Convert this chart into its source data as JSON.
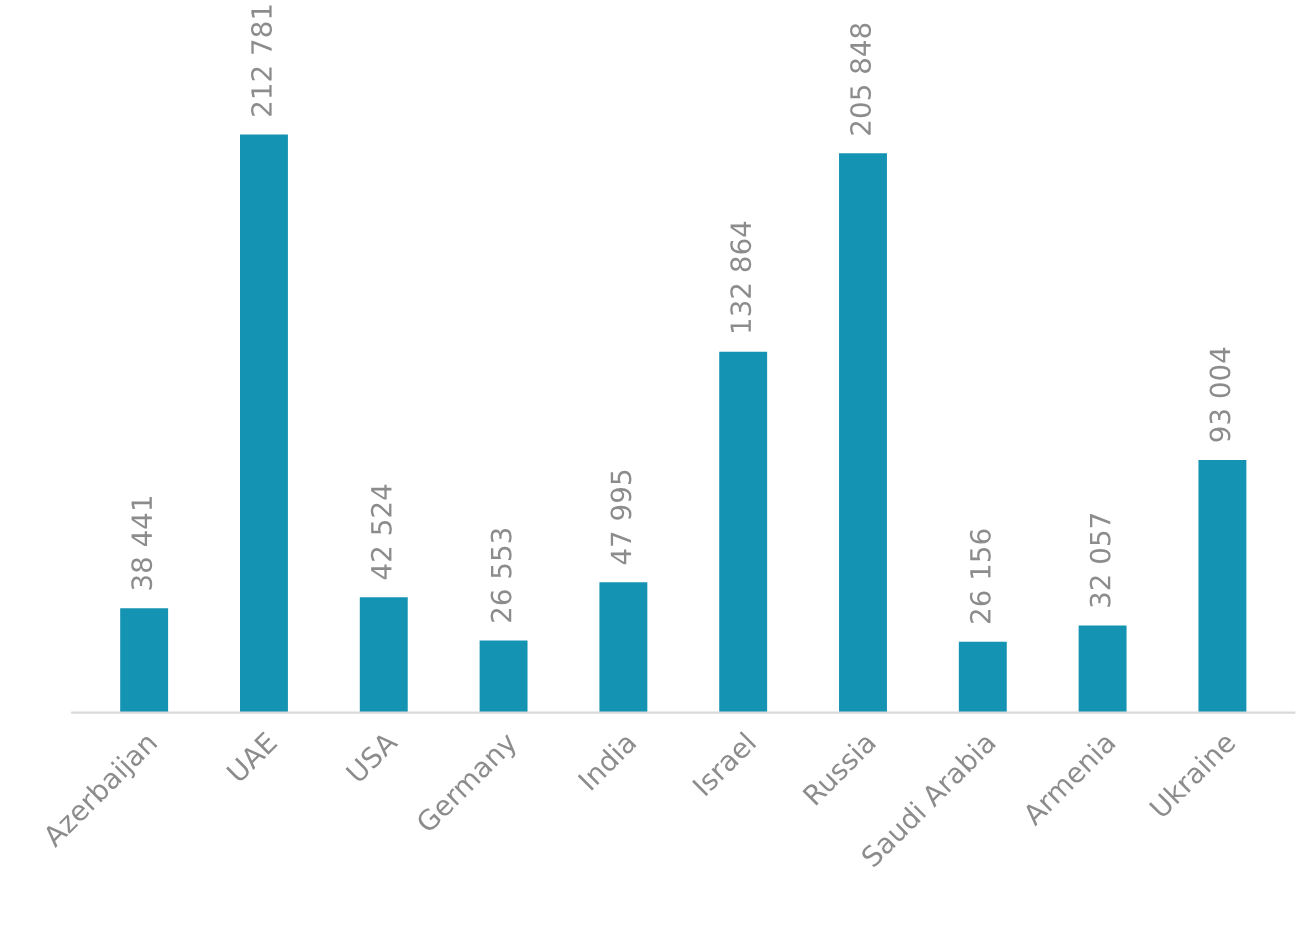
{
  "chart_data": {
    "type": "bar",
    "categories": [
      "Azerbaijan",
      "UAE",
      "USA",
      "Germany",
      "India",
      "Israel",
      "Russia",
      "Saudi Arabia",
      "Armenia",
      "Ukraine"
    ],
    "values": [
      38441,
      212781,
      42524,
      26553,
      47995,
      132864,
      205848,
      26156,
      32057,
      93004
    ],
    "value_labels": [
      "38 441",
      "212 781",
      "42 524",
      "26 553",
      "47 995",
      "132 864",
      "205 848",
      "26 156",
      "32 057",
      "93 004"
    ],
    "color": "#1593b2",
    "grid": false,
    "legend": false
  }
}
